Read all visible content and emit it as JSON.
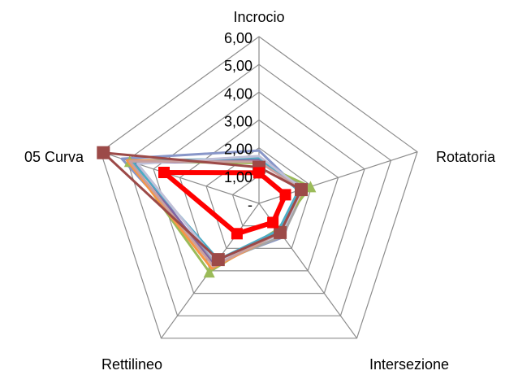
{
  "chart_data": {
    "type": "radar",
    "categories": [
      "Incrocio",
      "Rotatoria",
      "Intersezione",
      "Rettilineo",
      "05 Curva"
    ],
    "tick_labels": [
      "-",
      "1,00",
      "2,00",
      "3,00",
      "4,00",
      "5,00",
      "6,00"
    ],
    "rlim": [
      0,
      6
    ],
    "grid": true,
    "legend": "none",
    "series": [
      {
        "color": "#8896c8",
        "width": 3,
        "marker": "none",
        "values": [
          1.9,
          1.55,
          1.5,
          2.6,
          5.2
        ]
      },
      {
        "color": "#a5a5a5",
        "width": 3,
        "marker": "none",
        "values": [
          1.6,
          1.75,
          1.45,
          2.7,
          5.0
        ]
      },
      {
        "color": "#9bbb59",
        "width": 3,
        "marker": "triangle",
        "values": [
          1.45,
          1.95,
          1.15,
          3.05,
          4.9
        ]
      },
      {
        "color": "#f79646",
        "width": 3,
        "marker": "none",
        "values": [
          1.5,
          1.7,
          1.3,
          2.9,
          5.0
        ]
      },
      {
        "color": "#8064a2",
        "width": 3,
        "marker": "none",
        "values": [
          1.55,
          1.6,
          1.25,
          2.75,
          4.7
        ]
      },
      {
        "color": "#4bacc6",
        "width": 3,
        "marker": "none",
        "values": [
          1.65,
          1.5,
          1.2,
          2.5,
          4.8
        ]
      },
      {
        "color": "#c0c0d8",
        "width": 3,
        "marker": "none",
        "values": [
          1.7,
          1.65,
          1.35,
          2.6,
          4.6
        ]
      },
      {
        "color": "#c8a0a0",
        "width": 3,
        "marker": "none",
        "values": [
          1.5,
          1.6,
          1.3,
          2.8,
          4.9
        ]
      },
      {
        "color": "#9c4a48",
        "width": 3,
        "marker": "square",
        "values": [
          1.3,
          1.6,
          1.3,
          2.5,
          5.9
        ]
      },
      {
        "color": "#ff0000",
        "width": 6,
        "marker": "square",
        "values": [
          1.1,
          1.0,
          0.85,
          1.35,
          3.6
        ]
      }
    ]
  }
}
